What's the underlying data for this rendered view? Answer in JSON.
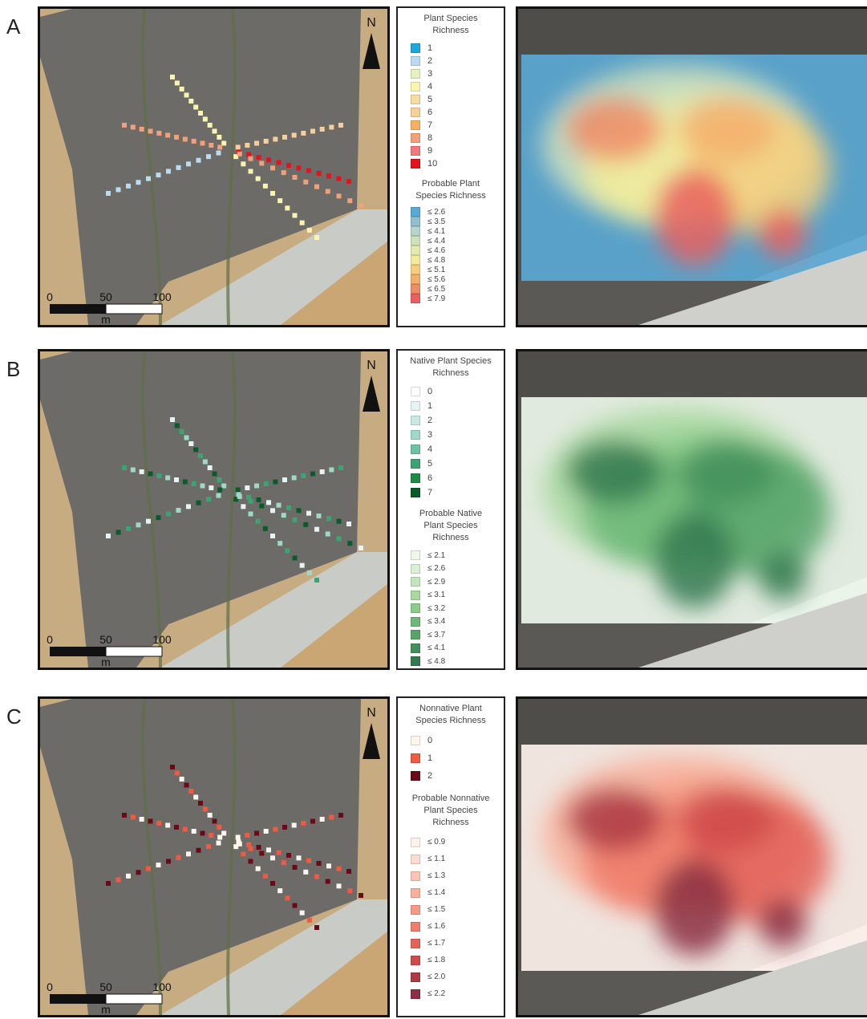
{
  "panels": [
    {
      "letter": "A",
      "north": "N",
      "scale": {
        "labels": [
          "0",
          "50",
          "100"
        ],
        "unit": "m"
      },
      "legend": {
        "title": "Plant Species Richness",
        "items": [
          {
            "label": "1",
            "color": "#1ea6df"
          },
          {
            "label": "2",
            "color": "#b9dcf0"
          },
          {
            "label": "3",
            "color": "#e6f1c0"
          },
          {
            "label": "4",
            "color": "#f8f5b0"
          },
          {
            "label": "5",
            "color": "#f7dca0"
          },
          {
            "label": "6",
            "color": "#f6d09a"
          },
          {
            "label": "7",
            "color": "#f4b064"
          },
          {
            "label": "8",
            "color": "#f2a07a"
          },
          {
            "label": "9",
            "color": "#ee7a7e"
          },
          {
            "label": "10",
            "color": "#e3141d"
          }
        ]
      },
      "probable": {
        "title": "Probable Plant Species Richness",
        "items": [
          {
            "label": "≤ 2.6",
            "color": "#5aa8d4"
          },
          {
            "label": "≤ 3.5",
            "color": "#8fbfd0"
          },
          {
            "label": "≤ 4.1",
            "color": "#b4d4cc"
          },
          {
            "label": "≤ 4.4",
            "color": "#cfe0bd"
          },
          {
            "label": "≤ 4.6",
            "color": "#e3eab0"
          },
          {
            "label": "≤ 4.8",
            "color": "#f1ec9c"
          },
          {
            "label": "≤ 5.1",
            "color": "#f5cf7d"
          },
          {
            "label": "≤ 5.6",
            "color": "#f3b06d"
          },
          {
            "label": "≤ 6.5",
            "color": "#ee8c66"
          },
          {
            "label": "≤ 7.9",
            "color": "#e8605f"
          }
        ]
      }
    },
    {
      "letter": "B",
      "north": "N",
      "scale": {
        "labels": [
          "0",
          "50",
          "100"
        ],
        "unit": "m"
      },
      "legend": {
        "title": "Native Plant Species Richness",
        "items": [
          {
            "label": "0",
            "color": "#ffffff"
          },
          {
            "label": "1",
            "color": "#e5f4f3"
          },
          {
            "label": "2",
            "color": "#c8e9e1"
          },
          {
            "label": "3",
            "color": "#9fd8c6"
          },
          {
            "label": "4",
            "color": "#6cc2a2"
          },
          {
            "label": "5",
            "color": "#3ea372"
          },
          {
            "label": "6",
            "color": "#1f8a45"
          },
          {
            "label": "7",
            "color": "#0b5a2a"
          }
        ]
      },
      "probable": {
        "title": "Probable Native Plant Species Richness",
        "items": [
          {
            "label": "≤ 2.1",
            "color": "#eef7ea"
          },
          {
            "label": "≤ 2.6",
            "color": "#dbefd4"
          },
          {
            "label": "≤ 2.9",
            "color": "#c3e5bb"
          },
          {
            "label": "≤ 3.1",
            "color": "#a9d9a1"
          },
          {
            "label": "≤ 3.2",
            "color": "#8ccb89"
          },
          {
            "label": "≤ 3.4",
            "color": "#6fb87a"
          },
          {
            "label": "≤ 3.7",
            "color": "#57a56b"
          },
          {
            "label": "≤ 4.1",
            "color": "#44905d"
          },
          {
            "label": "≤ 4.8",
            "color": "#347a50"
          }
        ]
      }
    },
    {
      "letter": "C",
      "north": "N",
      "scale": {
        "labels": [
          "0",
          "50",
          "100"
        ],
        "unit": "m"
      },
      "legend": {
        "title": "Nonnative Plant Species Richness",
        "items": [
          {
            "label": "0",
            "color": "#fff5ee"
          },
          {
            "label": "1",
            "color": "#ef5a43"
          },
          {
            "label": "2",
            "color": "#6b0a16"
          }
        ]
      },
      "probable": {
        "title": "Probable Nonnative Plant Species Richness",
        "items": [
          {
            "label": "≤ 0.9",
            "color": "#fdf1ea"
          },
          {
            "label": "≤ 1.1",
            "color": "#fbdcd1"
          },
          {
            "label": "≤ 1.3",
            "color": "#f9c5b4"
          },
          {
            "label": "≤ 1.4",
            "color": "#f8b19c"
          },
          {
            "label": "≤ 1.5",
            "color": "#f59a84"
          },
          {
            "label": "≤ 1.6",
            "color": "#f07e6c"
          },
          {
            "label": "≤ 1.7",
            "color": "#e36359"
          },
          {
            "label": "≤ 1.8",
            "color": "#cf4a4a"
          },
          {
            "label": "≤ 2.0",
            "color": "#ad3b45"
          },
          {
            "label": "≤ 2.2",
            "color": "#8b3042"
          }
        ]
      }
    }
  ]
}
